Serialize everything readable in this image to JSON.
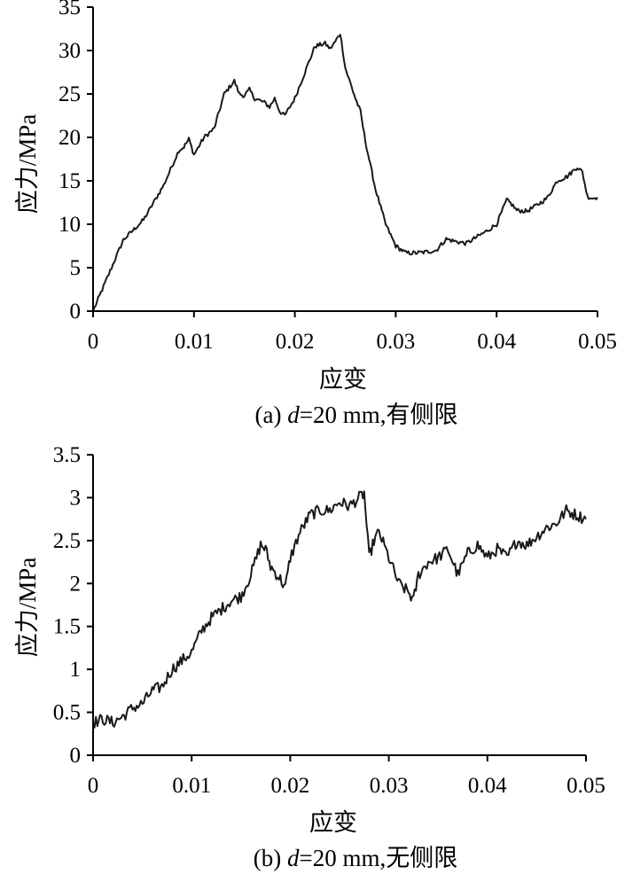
{
  "chart_data": [
    {
      "type": "line",
      "xlabel": "应变",
      "ylabel": "应力/MPa",
      "caption": {
        "prefix": "(a) ",
        "var": "d",
        "suffix": "=20 mm,有侧限"
      },
      "xlim": [
        0,
        0.05
      ],
      "ylim": [
        0,
        35
      ],
      "xticks": [
        "0",
        "0.01",
        "0.02",
        "0.03",
        "0.04",
        "0.05"
      ],
      "yticks": [
        "0",
        "5",
        "10",
        "15",
        "20",
        "25",
        "30",
        "35"
      ],
      "grid": false,
      "noise": 0.25,
      "series": [
        {
          "x": [
            0,
            0.003,
            0.005,
            0.007,
            0.0085,
            0.009,
            0.0095,
            0.01,
            0.011,
            0.012,
            0.013,
            0.014,
            0.0145,
            0.015,
            0.0155,
            0.016,
            0.017,
            0.0175,
            0.018,
            0.0185,
            0.019,
            0.02,
            0.021,
            0.022,
            0.023,
            0.0235,
            0.024,
            0.0245,
            0.025,
            0.026,
            0.0265,
            0.027,
            0.028,
            0.029,
            0.03,
            0.031,
            0.032,
            0.033,
            0.034,
            0.035,
            0.036,
            0.037,
            0.038,
            0.039,
            0.04,
            0.041,
            0.0415,
            0.042,
            0.043,
            0.044,
            0.045,
            0.046,
            0.047,
            0.048,
            0.0485,
            0.049,
            0.0495,
            0.05
          ],
          "y": [
            0,
            8.2,
            10.5,
            14.5,
            18.5,
            18.9,
            19.8,
            18.0,
            20.0,
            21.0,
            25.0,
            26.5,
            25.0,
            24.8,
            25.5,
            24.5,
            24.0,
            23.5,
            24.5,
            23.0,
            22.5,
            24.5,
            27.5,
            30.5,
            30.8,
            30.2,
            31.0,
            32.0,
            28.0,
            24.5,
            23.0,
            19.5,
            14.0,
            10.0,
            7.5,
            6.7,
            6.7,
            6.8,
            7.0,
            8.3,
            8.0,
            7.8,
            8.5,
            9.2,
            10.0,
            12.8,
            12.3,
            11.6,
            11.5,
            12.2,
            13.0,
            15.0,
            15.5,
            16.6,
            16.0,
            13.2,
            13.0,
            13.1
          ]
        }
      ]
    },
    {
      "type": "line",
      "xlabel": "应变",
      "ylabel": "应力/MPa",
      "caption": {
        "prefix": "(b) ",
        "var": "d",
        "suffix": "=20 mm,无侧限"
      },
      "xlim": [
        0,
        0.05
      ],
      "ylim": [
        0,
        3.5
      ],
      "xticks": [
        "0",
        "0.01",
        "0.02",
        "0.03",
        "0.04",
        "0.05"
      ],
      "yticks": [
        "0",
        "0.5",
        "1",
        "1.5",
        "2",
        "2.5",
        "3",
        "3.5"
      ],
      "grid": false,
      "noise": 0.07,
      "series": [
        {
          "x": [
            0,
            0.001,
            0.002,
            0.003,
            0.004,
            0.005,
            0.006,
            0.007,
            0.008,
            0.009,
            0.01,
            0.011,
            0.012,
            0.013,
            0.014,
            0.015,
            0.016,
            0.017,
            0.0175,
            0.018,
            0.019,
            0.0195,
            0.02,
            0.021,
            0.022,
            0.023,
            0.024,
            0.025,
            0.026,
            0.027,
            0.0275,
            0.028,
            0.0285,
            0.029,
            0.03,
            0.031,
            0.032,
            0.0325,
            0.033,
            0.034,
            0.035,
            0.036,
            0.037,
            0.038,
            0.039,
            0.04,
            0.041,
            0.042,
            0.043,
            0.044,
            0.045,
            0.046,
            0.047,
            0.048,
            0.049,
            0.05
          ],
          "y": [
            0.38,
            0.42,
            0.38,
            0.45,
            0.55,
            0.6,
            0.75,
            0.8,
            1.0,
            1.1,
            1.2,
            1.45,
            1.6,
            1.7,
            1.8,
            1.85,
            2.1,
            2.45,
            2.4,
            2.2,
            2.05,
            1.95,
            2.3,
            2.6,
            2.8,
            2.85,
            2.85,
            2.95,
            2.9,
            3.0,
            3.05,
            2.3,
            2.5,
            2.6,
            2.3,
            2.0,
            1.9,
            1.8,
            2.1,
            2.25,
            2.3,
            2.4,
            2.1,
            2.35,
            2.45,
            2.3,
            2.4,
            2.3,
            2.5,
            2.45,
            2.55,
            2.65,
            2.7,
            2.85,
            2.8,
            2.75
          ]
        }
      ]
    }
  ]
}
